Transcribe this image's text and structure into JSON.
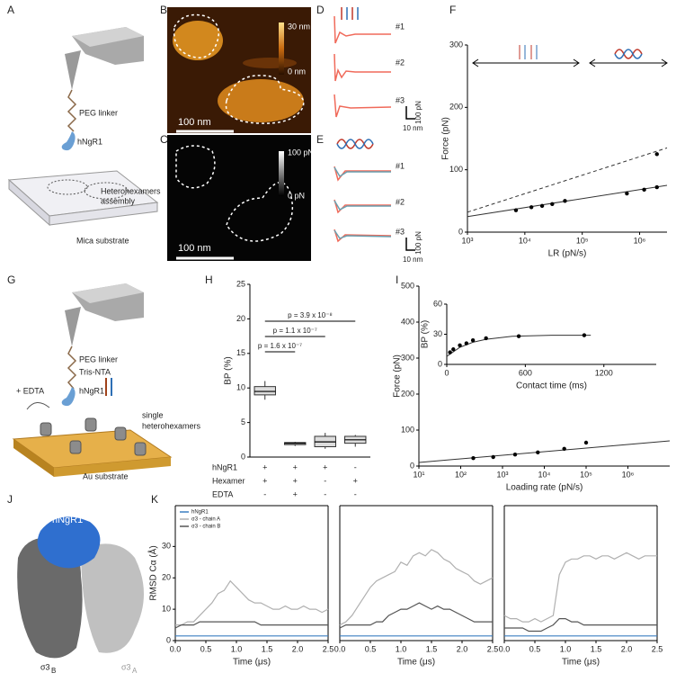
{
  "panel_labels": [
    "A",
    "B",
    "C",
    "D",
    "E",
    "F",
    "G",
    "H",
    "I",
    "J",
    "K"
  ],
  "A": {
    "linker": "PEG linker",
    "protein": "hNgR1",
    "assembly_1": "Heterohexamers",
    "assembly_2": "assembly",
    "substrate": "Mica substrate"
  },
  "B": {
    "scale_top": "30 nm",
    "scale_bottom": "0 nm",
    "scalebar": "100 nm"
  },
  "C": {
    "scale_top": "100 pN",
    "scale_bottom": "0 pN",
    "scalebar": "100 nm"
  },
  "D": {
    "traces": [
      "#1",
      "#2",
      "#3"
    ],
    "force_scale": "100 pN",
    "distance_scale": "10 nm"
  },
  "E": {
    "traces": [
      "#1",
      "#2",
      "#3"
    ],
    "force_scale": "100 pN",
    "distance_scale": "10 nm"
  },
  "G": {
    "linker": "PEG linker",
    "nta": "Tris-NTA",
    "protein": "hNgR1",
    "edta": "+ EDTA",
    "hexamers_1": "single",
    "hexamers_2": "heterohexamers",
    "substrate": "Au substrate"
  },
  "J": {
    "protein": "hNgR1",
    "chain_b": "σ3",
    "chain_b_sub": "B",
    "chain_a": "σ3",
    "chain_a_sub": "A"
  },
  "chart_data": [
    {
      "type": "scatter",
      "xlabel": "LR (pN/s)",
      "ylabel": "Force (pN)",
      "xlog": true,
      "xlim": [
        1000,
        3000000
      ],
      "xticks": [
        {
          "value": 1000,
          "label": "10³"
        },
        {
          "value": 10000,
          "label": "10⁴"
        },
        {
          "value": 100000,
          "label": "10⁵"
        },
        {
          "value": 1000000,
          "label": "10⁶"
        }
      ],
      "ylim": [
        0,
        300
      ],
      "yticks": [
        0,
        100,
        200,
        300
      ],
      "color": "#000000",
      "x": [
        7000,
        13000,
        20000,
        30000,
        50000,
        600000,
        1200000,
        2000000,
        2000000
      ],
      "values": [
        35,
        40,
        42,
        45,
        50,
        62,
        68,
        72,
        125
      ],
      "fits": [
        {
          "style": "solid",
          "x": [
            1000,
            3000000
          ],
          "values": [
            25,
            75
          ]
        },
        {
          "style": "dashed",
          "x": [
            1000,
            3000000
          ],
          "values": [
            32,
            135
          ]
        }
      ]
    },
    {
      "type": "box",
      "ylabel": "BP (%)",
      "ylim": [
        0,
        25
      ],
      "yticks": [
        0,
        5,
        10,
        15,
        20,
        25
      ],
      "boxes": [
        {
          "min": 8.3,
          "q1": 9,
          "median": 9.5,
          "q3": 10.2,
          "max": 11
        },
        {
          "min": 1.6,
          "q1": 1.8,
          "median": 2,
          "q3": 2.1,
          "max": 2.2
        },
        {
          "min": 1.2,
          "q1": 1.5,
          "median": 2.2,
          "q3": 3,
          "max": 3.5
        },
        {
          "min": 1.5,
          "q1": 2,
          "median": 2.5,
          "q3": 3,
          "max": 3.2
        }
      ],
      "comparisons": [
        "p = 1.6 x 10⁻⁷",
        "p = 1.1 x 10⁻⁷",
        "p = 3.9 x 10⁻⁸"
      ],
      "conditions": [
        {
          "name": "hNgR1",
          "values": [
            "+",
            "+",
            "+",
            "-"
          ]
        },
        {
          "name": "Hexamer",
          "values": [
            "+",
            "+",
            "-",
            "+"
          ]
        },
        {
          "name": "EDTA",
          "values": [
            "-",
            "+",
            "-",
            "-"
          ]
        }
      ]
    },
    {
      "type": "scatter",
      "xlabel": "Loading rate (pN/s)",
      "ylabel": "Force (pN)",
      "xlog": true,
      "xlim": [
        10,
        10000000
      ],
      "xticks": [
        {
          "value": 10,
          "label": "10¹"
        },
        {
          "value": 100,
          "label": "10²"
        },
        {
          "value": 1000,
          "label": "10³"
        },
        {
          "value": 10000,
          "label": "10⁴"
        },
        {
          "value": 100000,
          "label": "10⁵"
        },
        {
          "value": 1000000,
          "label": "10⁶"
        }
      ],
      "ylim": [
        0,
        500
      ],
      "yticks": [
        0,
        100,
        200,
        300,
        400,
        500
      ],
      "color": "#000000",
      "x": [
        200,
        600,
        2000,
        7000,
        30000,
        100000
      ],
      "values": [
        22,
        25,
        32,
        38,
        48,
        65
      ],
      "fits": [
        {
          "style": "solid",
          "x": [
            10,
            10000000
          ],
          "values": [
            10,
            70
          ]
        }
      ]
    },
    {
      "type": "scatter",
      "xlabel": "Contact time (ms)",
      "ylabel": "BP (%)",
      "xlim": [
        0,
        1600
      ],
      "xticks": [
        0,
        600,
        1200
      ],
      "ylim": [
        0,
        60
      ],
      "yticks": [
        0,
        30,
        60
      ],
      "color": "#000000",
      "x": [
        25,
        50,
        100,
        150,
        200,
        300,
        550,
        1050
      ],
      "values": [
        12,
        15,
        19,
        21,
        24,
        26,
        28,
        29
      ],
      "fits": [
        {
          "style": "solid",
          "x": [
            0,
            100,
            200,
            300,
            500,
            800,
            1100
          ],
          "values": [
            8,
            17,
            22,
            25,
            28,
            29,
            29
          ]
        }
      ]
    },
    {
      "type": "line",
      "xlabel": "Time (μs)",
      "ylabel": "RMSD Cα (Å)",
      "xlim": [
        0,
        2.5
      ],
      "xticks": [
        {
          "value": 0,
          "label": "0.0"
        },
        0.5,
        {
          "value": 1,
          "label": "1.0"
        },
        1.5,
        {
          "value": 2,
          "label": "2.0"
        },
        2.5
      ],
      "ylim": [
        0,
        43
      ],
      "yticks": [
        0,
        10,
        20,
        30
      ],
      "x": [
        0,
        0.1,
        0.2,
        0.3,
        0.4,
        0.5,
        0.6,
        0.7,
        0.8,
        0.9,
        1,
        1.1,
        1.2,
        1.3,
        1.4,
        1.5,
        1.6,
        1.7,
        1.8,
        1.9,
        2,
        2.1,
        2.2,
        2.3,
        2.4,
        2.5
      ],
      "series": [
        {
          "name": "hNgR1",
          "color": "#3a7fc1",
          "values": [
            1.5,
            1.5,
            1.5,
            1.5,
            1.5,
            1.5,
            1.5,
            1.5,
            1.5,
            1.5,
            1.5,
            1.5,
            1.5,
            1.5,
            1.5,
            1.5,
            1.5,
            1.5,
            1.5,
            1.5,
            1.5,
            1.5,
            1.5,
            1.5,
            1.5,
            1.5
          ]
        },
        {
          "name": "σ3 - chain A",
          "color": "#b0b0b0",
          "values": [
            5,
            5,
            6,
            6,
            8,
            10,
            12,
            15,
            16,
            19,
            17,
            15,
            13,
            12,
            12,
            11,
            10,
            10,
            11,
            10,
            10,
            11,
            10,
            10,
            9,
            10
          ]
        },
        {
          "name": "σ3 - chain B",
          "color": "#555555",
          "values": [
            4,
            5,
            5,
            5,
            6,
            6,
            6,
            6,
            6,
            6,
            6,
            6,
            6,
            6,
            5,
            5,
            5,
            5,
            5,
            5,
            5,
            5,
            5,
            5,
            5,
            5
          ]
        }
      ]
    },
    {
      "type": "line",
      "xlabel": "Time (μs)",
      "xlim": [
        0,
        2.5
      ],
      "xticks": [
        {
          "value": 0,
          "label": "0.0"
        },
        0.5,
        {
          "value": 1,
          "label": "1.0"
        },
        1.5,
        {
          "value": 2,
          "label": "2.0"
        },
        2.5
      ],
      "ylim": [
        0,
        43
      ],
      "x": [
        0,
        0.1,
        0.2,
        0.3,
        0.4,
        0.5,
        0.6,
        0.7,
        0.8,
        0.9,
        1,
        1.1,
        1.2,
        1.3,
        1.4,
        1.5,
        1.6,
        1.7,
        1.8,
        1.9,
        2,
        2.1,
        2.2,
        2.3,
        2.4,
        2.5
      ],
      "series": [
        {
          "color": "#3a7fc1",
          "values": [
            1.5,
            1.5,
            1.5,
            1.5,
            1.5,
            1.5,
            1.5,
            1.5,
            1.5,
            1.5,
            1.5,
            1.5,
            1.5,
            1.5,
            1.5,
            1.5,
            1.5,
            1.5,
            1.5,
            1.5,
            1.5,
            1.5,
            1.5,
            1.5,
            1.5,
            1.5
          ]
        },
        {
          "color": "#b0b0b0",
          "values": [
            5,
            6,
            8,
            11,
            14,
            17,
            19,
            20,
            21,
            22,
            25,
            24,
            27,
            28,
            27,
            29,
            28,
            26,
            25,
            23,
            22,
            21,
            19,
            18,
            19,
            20
          ]
        },
        {
          "color": "#555555",
          "values": [
            4,
            5,
            5,
            5,
            5,
            5,
            6,
            6,
            8,
            9,
            10,
            10,
            11,
            12,
            11,
            10,
            11,
            10,
            10,
            9,
            8,
            7,
            6,
            6,
            6,
            6
          ]
        }
      ]
    },
    {
      "type": "line",
      "xlabel": "Time (μs)",
      "xlim": [
        0,
        2.5
      ],
      "xticks": [
        {
          "value": 0,
          "label": "0.0"
        },
        0.5,
        {
          "value": 1,
          "label": "1.0"
        },
        1.5,
        {
          "value": 2,
          "label": "2.0"
        },
        2.5
      ],
      "ylim": [
        0,
        43
      ],
      "x": [
        0,
        0.1,
        0.2,
        0.3,
        0.4,
        0.5,
        0.6,
        0.7,
        0.8,
        0.9,
        1,
        1.1,
        1.2,
        1.3,
        1.4,
        1.5,
        1.6,
        1.7,
        1.8,
        1.9,
        2,
        2.1,
        2.2,
        2.3,
        2.4,
        2.5
      ],
      "series": [
        {
          "color": "#3a7fc1",
          "values": [
            1.5,
            1.5,
            1.5,
            1.5,
            1.5,
            1.5,
            1.5,
            1.5,
            1.5,
            1.5,
            1.5,
            1.5,
            1.5,
            1.5,
            1.5,
            1.5,
            1.5,
            1.5,
            1.5,
            1.5,
            1.5,
            1.5,
            1.5,
            1.5,
            1.5,
            1.5
          ]
        },
        {
          "color": "#b0b0b0",
          "values": [
            8,
            7,
            7,
            6,
            6,
            7,
            6,
            7,
            8,
            21,
            25,
            26,
            26,
            27,
            27,
            26,
            27,
            27,
            26,
            27,
            28,
            27,
            26,
            27,
            27,
            27
          ]
        },
        {
          "color": "#555555",
          "values": [
            4,
            4,
            4,
            4,
            3,
            3,
            3,
            4,
            5,
            7,
            7,
            6,
            6,
            5,
            5,
            5,
            5,
            5,
            5,
            5,
            5,
            5,
            5,
            5,
            5,
            5
          ]
        }
      ]
    }
  ]
}
